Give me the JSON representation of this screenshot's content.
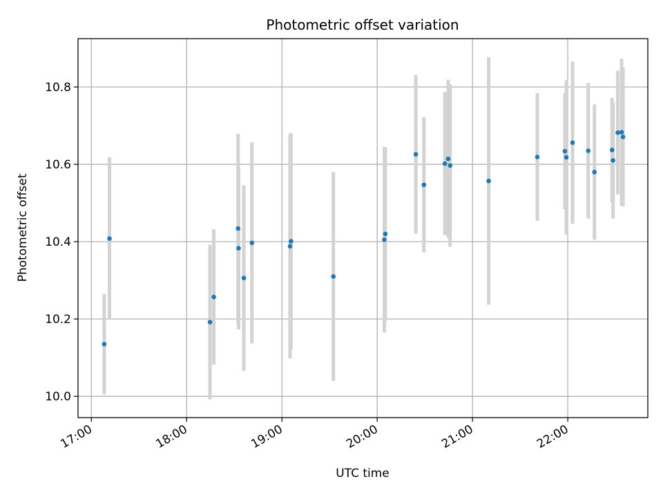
{
  "chart_data": {
    "type": "scatter",
    "title": "Photometric offset variation",
    "xlabel": "UTC time",
    "ylabel": "Photometric offset",
    "grid": true,
    "xlim": [
      16.86,
      22.84
    ],
    "ylim": [
      9.945,
      10.925
    ],
    "x_ticks": [
      17,
      18,
      19,
      20,
      21,
      22
    ],
    "x_tick_labels": [
      "17:00",
      "18:00",
      "19:00",
      "20:00",
      "21:00",
      "22:00"
    ],
    "y_ticks": [
      10.0,
      10.2,
      10.4,
      10.6,
      10.8
    ],
    "y_tick_labels": [
      "10.0",
      "10.2",
      "10.4",
      "10.6",
      "10.8"
    ],
    "marker_color": "#1f77b4",
    "errorbar_color": "#d3d3d3",
    "points": [
      {
        "time": "17:08",
        "x": 17.135,
        "y": 10.135,
        "err": 0.13
      },
      {
        "time": "17:11",
        "x": 17.19,
        "y": 10.408,
        "err": 0.21
      },
      {
        "time": "18:15",
        "x": 18.245,
        "y": 10.192,
        "err": 0.2
      },
      {
        "time": "18:17",
        "x": 18.285,
        "y": 10.257,
        "err": 0.175
      },
      {
        "time": "18:32",
        "x": 18.54,
        "y": 10.434,
        "err": 0.245
      },
      {
        "time": "18:33",
        "x": 18.545,
        "y": 10.383,
        "err": 0.21
      },
      {
        "time": "18:36",
        "x": 18.6,
        "y": 10.306,
        "err": 0.24
      },
      {
        "time": "18:41",
        "x": 18.685,
        "y": 10.397,
        "err": 0.26
      },
      {
        "time": "19:05",
        "x": 19.085,
        "y": 10.388,
        "err": 0.29
      },
      {
        "time": "19:06",
        "x": 19.095,
        "y": 10.401,
        "err": 0.28
      },
      {
        "time": "19:32",
        "x": 19.54,
        "y": 10.31,
        "err": 0.27
      },
      {
        "time": "20:05",
        "x": 20.075,
        "y": 10.405,
        "err": 0.24
      },
      {
        "time": "20:05",
        "x": 20.085,
        "y": 10.42,
        "err": 0.225
      },
      {
        "time": "20:25",
        "x": 20.405,
        "y": 10.626,
        "err": 0.205
      },
      {
        "time": "20:29",
        "x": 20.49,
        "y": 10.547,
        "err": 0.175
      },
      {
        "time": "20:42",
        "x": 20.71,
        "y": 10.602,
        "err": 0.185
      },
      {
        "time": "20:45",
        "x": 20.745,
        "y": 10.614,
        "err": 0.205
      },
      {
        "time": "20:46",
        "x": 20.765,
        "y": 10.597,
        "err": 0.21
      },
      {
        "time": "21:10",
        "x": 21.17,
        "y": 10.557,
        "err": 0.32
      },
      {
        "time": "21:41",
        "x": 21.68,
        "y": 10.619,
        "err": 0.165
      },
      {
        "time": "21:58",
        "x": 21.97,
        "y": 10.634,
        "err": 0.15
      },
      {
        "time": "21:59",
        "x": 21.985,
        "y": 10.618,
        "err": 0.2
      },
      {
        "time": "22:03",
        "x": 22.05,
        "y": 10.656,
        "err": 0.21
      },
      {
        "time": "22:13",
        "x": 22.215,
        "y": 10.635,
        "err": 0.175
      },
      {
        "time": "22:17",
        "x": 22.28,
        "y": 10.58,
        "err": 0.175
      },
      {
        "time": "22:28",
        "x": 22.465,
        "y": 10.637,
        "err": 0.135
      },
      {
        "time": "22:28",
        "x": 22.475,
        "y": 10.61,
        "err": 0.15
      },
      {
        "time": "22:31",
        "x": 22.525,
        "y": 10.682,
        "err": 0.16
      },
      {
        "time": "22:34",
        "x": 22.565,
        "y": 10.683,
        "err": 0.19
      },
      {
        "time": "22:35",
        "x": 22.58,
        "y": 10.671,
        "err": 0.18
      }
    ]
  }
}
